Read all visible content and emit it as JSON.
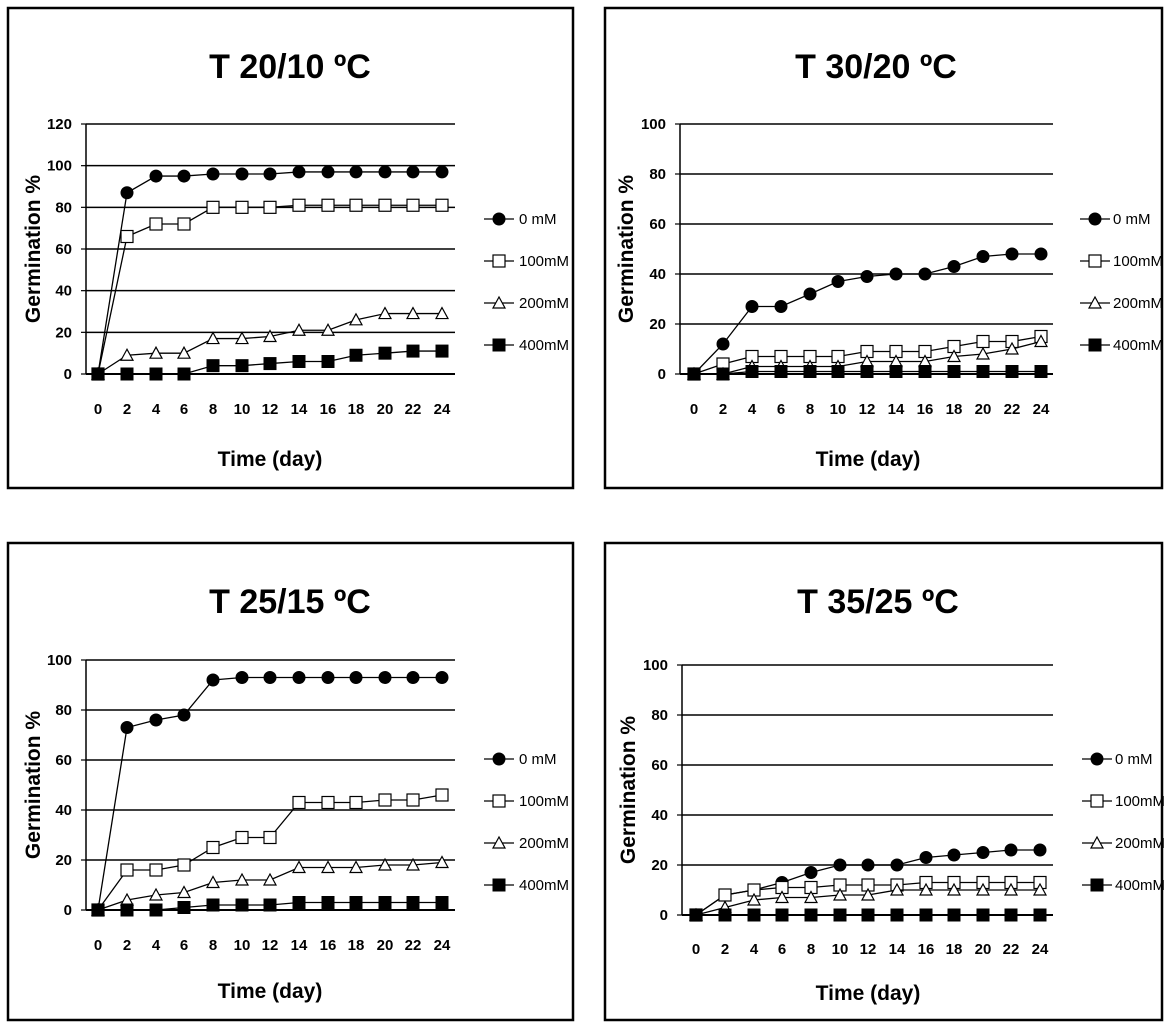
{
  "chart_data": [
    {
      "type": "line",
      "title": "T  20/10 ºC",
      "xlabel": "Time (day)",
      "ylabel": "Germination %",
      "x": [
        0,
        2,
        4,
        6,
        8,
        10,
        12,
        14,
        16,
        18,
        20,
        22,
        24
      ],
      "ylim": [
        0,
        120
      ],
      "yticks": [
        0,
        20,
        40,
        60,
        80,
        100,
        120
      ],
      "grid": true,
      "legend_position": "right",
      "series": [
        {
          "name": "0 mM",
          "marker": "filled-circle",
          "values": [
            0,
            87,
            95,
            95,
            96,
            96,
            96,
            97,
            97,
            97,
            97,
            97,
            97
          ]
        },
        {
          "name": "100mM",
          "marker": "open-square",
          "values": [
            0,
            66,
            72,
            72,
            80,
            80,
            80,
            81,
            81,
            81,
            81,
            81,
            81
          ]
        },
        {
          "name": "200mM",
          "marker": "open-triangle",
          "values": [
            0,
            9,
            10,
            10,
            17,
            17,
            18,
            21,
            21,
            26,
            29,
            29,
            29
          ]
        },
        {
          "name": "400mM",
          "marker": "filled-square",
          "values": [
            0,
            0,
            0,
            0,
            4,
            4,
            5,
            6,
            6,
            9,
            10,
            11,
            11
          ]
        }
      ]
    },
    {
      "type": "line",
      "title": "T  30/20 ºC",
      "xlabel": "Time (day)",
      "ylabel": "Germination %",
      "x": [
        0,
        2,
        4,
        6,
        8,
        10,
        12,
        14,
        16,
        18,
        20,
        22,
        24
      ],
      "ylim": [
        0,
        100
      ],
      "yticks": [
        0,
        20,
        40,
        60,
        80,
        100
      ],
      "grid": true,
      "legend_position": "right",
      "series": [
        {
          "name": "0 mM",
          "marker": "filled-circle",
          "values": [
            0,
            12,
            27,
            27,
            32,
            37,
            39,
            40,
            40,
            43,
            47,
            48,
            48
          ]
        },
        {
          "name": "100mM",
          "marker": "open-square",
          "values": [
            0,
            4,
            7,
            7,
            7,
            7,
            9,
            9,
            9,
            11,
            13,
            13,
            15
          ]
        },
        {
          "name": "200mM",
          "marker": "open-triangle",
          "values": [
            0,
            0,
            3,
            3,
            3,
            3,
            5,
            5,
            5,
            7,
            8,
            10,
            13
          ]
        },
        {
          "name": "400mM",
          "marker": "filled-square",
          "values": [
            0,
            0,
            1,
            1,
            1,
            1,
            1,
            1,
            1,
            1,
            1,
            1,
            1
          ]
        }
      ]
    },
    {
      "type": "line",
      "title": "T  25/15 ºC",
      "xlabel": "Time (day)",
      "ylabel": "Germination %",
      "x": [
        0,
        2,
        4,
        6,
        8,
        10,
        12,
        14,
        16,
        18,
        20,
        22,
        24
      ],
      "ylim": [
        0,
        100
      ],
      "yticks": [
        0,
        20,
        40,
        60,
        80,
        100
      ],
      "grid": true,
      "legend_position": "right",
      "series": [
        {
          "name": "0 mM",
          "marker": "filled-circle",
          "values": [
            0,
            73,
            76,
            78,
            92,
            93,
            93,
            93,
            93,
            93,
            93,
            93,
            93
          ]
        },
        {
          "name": "100mM",
          "marker": "open-square",
          "values": [
            0,
            16,
            16,
            18,
            25,
            29,
            29,
            43,
            43,
            43,
            44,
            44,
            46
          ]
        },
        {
          "name": "200mM",
          "marker": "open-triangle",
          "values": [
            0,
            4,
            6,
            7,
            11,
            12,
            12,
            17,
            17,
            17,
            18,
            18,
            19
          ]
        },
        {
          "name": "400mM",
          "marker": "filled-square",
          "values": [
            0,
            0,
            0,
            1,
            2,
            2,
            2,
            3,
            3,
            3,
            3,
            3,
            3
          ]
        }
      ]
    },
    {
      "type": "line",
      "title": "T  35/25 ºC",
      "xlabel": "Time (day)",
      "ylabel": "Germination %",
      "x": [
        0,
        2,
        4,
        6,
        8,
        10,
        12,
        14,
        16,
        18,
        20,
        22,
        24
      ],
      "ylim": [
        0,
        100
      ],
      "yticks": [
        0,
        20,
        40,
        60,
        80,
        100
      ],
      "grid": true,
      "legend_position": "right",
      "series": [
        {
          "name": "0 mM",
          "marker": "filled-circle",
          "values": [
            0,
            8,
            10,
            13,
            17,
            20,
            20,
            20,
            23,
            24,
            25,
            26,
            26
          ]
        },
        {
          "name": "100mM",
          "marker": "open-square",
          "values": [
            0,
            8,
            10,
            11,
            11,
            12,
            12,
            12,
            13,
            13,
            13,
            13,
            13
          ]
        },
        {
          "name": "200mM",
          "marker": "open-triangle",
          "values": [
            0,
            3,
            6,
            7,
            7,
            8,
            8,
            10,
            10,
            10,
            10,
            10,
            10
          ]
        },
        {
          "name": "400mM",
          "marker": "filled-square",
          "values": [
            0,
            0,
            0,
            0,
            0,
            0,
            0,
            0,
            0,
            0,
            0,
            0,
            0
          ]
        }
      ]
    }
  ]
}
